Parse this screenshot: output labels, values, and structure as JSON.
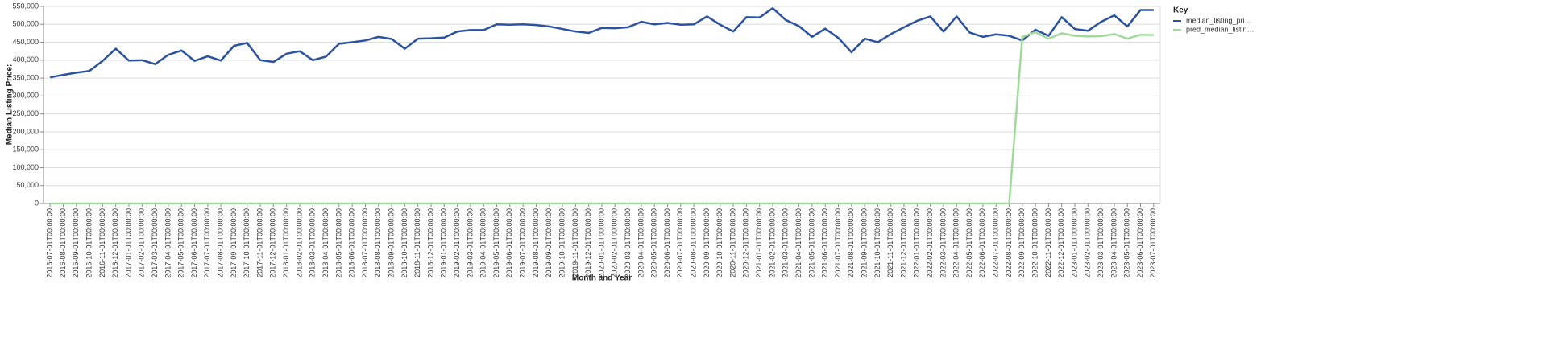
{
  "chart_data": {
    "type": "line",
    "x_label": "Month and Year",
    "y_label": "Median Listing Price:",
    "legend_title": "Key",
    "legend_position": "right",
    "grid": true,
    "categories": [
      "2016-07-01T00:00:00",
      "2016-08-01T00:00:00",
      "2016-09-01T00:00:00",
      "2016-10-01T00:00:00",
      "2016-11-01T00:00:00",
      "2016-12-01T00:00:00",
      "2017-01-01T00:00:00",
      "2017-02-01T00:00:00",
      "2017-03-01T00:00:00",
      "2017-04-01T00:00:00",
      "2017-05-01T00:00:00",
      "2017-06-01T00:00:00",
      "2017-07-01T00:00:00",
      "2017-08-01T00:00:00",
      "2017-09-01T00:00:00",
      "2017-10-01T00:00:00",
      "2017-11-01T00:00:00",
      "2017-12-01T00:00:00",
      "2018-01-01T00:00:00",
      "2018-02-01T00:00:00",
      "2018-03-01T00:00:00",
      "2018-04-01T00:00:00",
      "2018-05-01T00:00:00",
      "2018-06-01T00:00:00",
      "2018-07-01T00:00:00",
      "2018-08-01T00:00:00",
      "2018-09-01T00:00:00",
      "2018-10-01T00:00:00",
      "2018-11-01T00:00:00",
      "2018-12-01T00:00:00",
      "2019-01-01T00:00:00",
      "2019-02-01T00:00:00",
      "2019-03-01T00:00:00",
      "2019-04-01T00:00:00",
      "2019-05-01T00:00:00",
      "2019-06-01T00:00:00",
      "2019-07-01T00:00:00",
      "2019-08-01T00:00:00",
      "2019-09-01T00:00:00",
      "2019-10-01T00:00:00",
      "2019-11-01T00:00:00",
      "2019-12-01T00:00:00",
      "2020-01-01T00:00:00",
      "2020-02-01T00:00:00",
      "2020-03-01T00:00:00",
      "2020-04-01T00:00:00",
      "2020-05-01T00:00:00",
      "2020-06-01T00:00:00",
      "2020-07-01T00:00:00",
      "2020-08-01T00:00:00",
      "2020-09-01T00:00:00",
      "2020-10-01T00:00:00",
      "2020-11-01T00:00:00",
      "2020-12-01T00:00:00",
      "2021-01-01T00:00:00",
      "2021-02-01T00:00:00",
      "2021-03-01T00:00:00",
      "2021-04-01T00:00:00",
      "2021-05-01T00:00:00",
      "2021-06-01T00:00:00",
      "2021-07-01T00:00:00",
      "2021-08-01T00:00:00",
      "2021-09-01T00:00:00",
      "2021-10-01T00:00:00",
      "2021-11-01T00:00:00",
      "2021-12-01T00:00:00",
      "2022-01-01T00:00:00",
      "2022-02-01T00:00:00",
      "2022-03-01T00:00:00",
      "2022-04-01T00:00:00",
      "2022-05-01T00:00:00",
      "2022-06-01T00:00:00",
      "2022-07-01T00:00:00",
      "2022-08-01T00:00:00",
      "2022-09-01T00:00:00",
      "2022-10-01T00:00:00",
      "2022-11-01T00:00:00",
      "2022-12-01T00:00:00",
      "2023-01-01T00:00:00",
      "2023-02-01T00:00:00",
      "2023-03-01T00:00:00",
      "2023-04-01T00:00:00",
      "2023-05-01T00:00:00",
      "2023-06-01T00:00:00",
      "2023-07-01T00:00:00"
    ],
    "series": [
      {
        "name": "median_listing_pri…",
        "color": "#2a52a0",
        "values": [
          352000,
          359000,
          365000,
          370000,
          398000,
          432000,
          399000,
          400000,
          389000,
          415000,
          427000,
          398000,
          411000,
          399000,
          440000,
          448000,
          400000,
          395000,
          418000,
          425000,
          400000,
          410000,
          446000,
          450000,
          455000,
          465000,
          459000,
          432000,
          460000,
          461000,
          463000,
          480000,
          484000,
          484000,
          500000,
          499000,
          500000,
          498000,
          494000,
          487000,
          480000,
          476000,
          490000,
          489000,
          492000,
          507000,
          500000,
          504000,
          499000,
          500000,
          522000,
          499000,
          480000,
          520000,
          519000,
          545000,
          512000,
          495000,
          465000,
          488000,
          462000,
          422000,
          460000,
          450000,
          473000,
          492000,
          510000,
          522000,
          480000,
          522000,
          477000,
          465000,
          472000,
          468000,
          455000,
          485000,
          468000,
          520000,
          487000,
          482000,
          507000,
          525000,
          494000,
          540000,
          540000
        ]
      },
      {
        "name": "pred_median_listin…",
        "color": "#a1d99b",
        "values": [
          0,
          0,
          0,
          0,
          0,
          0,
          0,
          0,
          0,
          0,
          0,
          0,
          0,
          0,
          0,
          0,
          0,
          0,
          0,
          0,
          0,
          0,
          0,
          0,
          0,
          0,
          0,
          0,
          0,
          0,
          0,
          0,
          0,
          0,
          0,
          0,
          0,
          0,
          0,
          0,
          0,
          0,
          0,
          0,
          0,
          0,
          0,
          0,
          0,
          0,
          0,
          0,
          0,
          0,
          0,
          0,
          0,
          0,
          0,
          0,
          0,
          0,
          0,
          0,
          0,
          0,
          0,
          0,
          0,
          0,
          0,
          0,
          0,
          0,
          465000,
          478000,
          460000,
          475000,
          468000,
          466000,
          467000,
          473000,
          460000,
          471000,
          470000
        ]
      }
    ],
    "ylim": [
      0,
      550000
    ],
    "yticks": [
      0,
      {
        "value": 50000,
        "label": "50,000"
      },
      {
        "value": 100000,
        "label": "100,000"
      },
      {
        "value": 150000,
        "label": "150,000"
      },
      {
        "value": 200000,
        "label": "200,000"
      },
      {
        "value": 250000,
        "label": "250,000"
      },
      {
        "value": 300000,
        "label": "300,000"
      },
      {
        "value": 350000,
        "label": "350,000"
      },
      {
        "value": 400000,
        "label": "400,000"
      },
      {
        "value": 450000,
        "label": "450,000"
      },
      {
        "value": 500000,
        "label": "500,000"
      },
      {
        "value": 550000,
        "label": "550,000"
      }
    ]
  }
}
